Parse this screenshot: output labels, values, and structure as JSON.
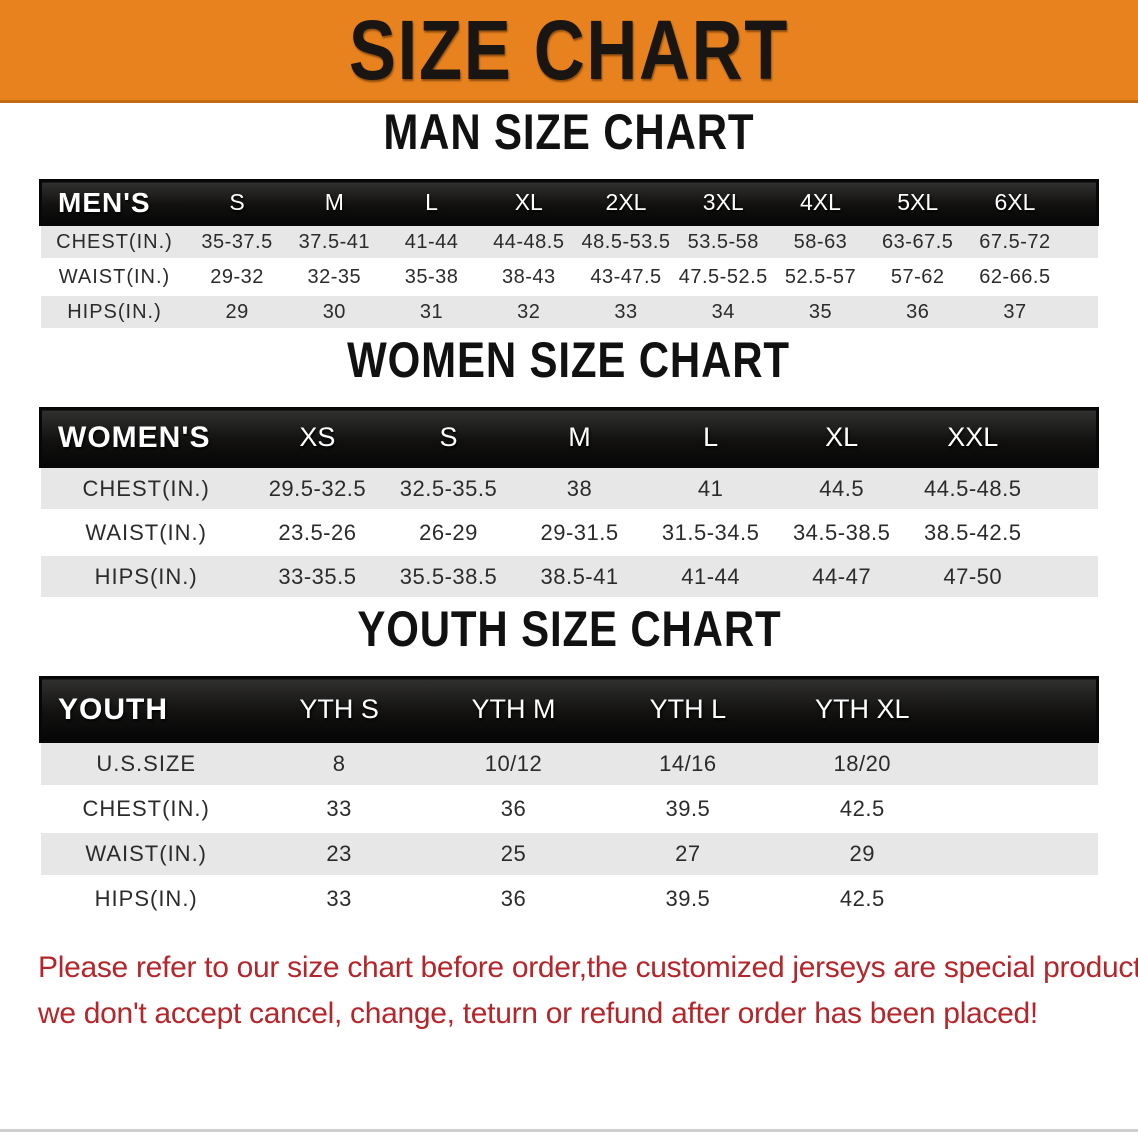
{
  "colors": {
    "banner-bg": "#E8821E",
    "banner-edge": "#C56A10",
    "band-text": "#FFFFFF",
    "stripe": "#E7E7E7",
    "heading-text": "#111111",
    "cell-text": "#2B2B2B",
    "disclaimer-red": "#B3262B"
  },
  "banner": {
    "title": "SIZE CHART"
  },
  "sections": {
    "men": {
      "heading": "MAN SIZE CHART",
      "header_label": "MEN'S",
      "columns": [
        "S",
        "M",
        "L",
        "XL",
        "2XL",
        "3XL",
        "4XL",
        "5XL",
        "6XL"
      ],
      "rows": [
        {
          "label": "CHEST(IN.)",
          "values": [
            "35-37.5",
            "37.5-41",
            "41-44",
            "44-48.5",
            "48.5-53.5",
            "53.5-58",
            "58-63",
            "63-67.5",
            "67.5-72"
          ]
        },
        {
          "label": "WAIST(IN.)",
          "values": [
            "29-32",
            "32-35",
            "35-38",
            "38-43",
            "43-47.5",
            "47.5-52.5",
            "52.5-57",
            "57-62",
            "62-66.5"
          ]
        },
        {
          "label": "HIPS(IN.)",
          "values": [
            "29",
            "30",
            "31",
            "32",
            "33",
            "34",
            "35",
            "36",
            "37"
          ]
        }
      ]
    },
    "women": {
      "heading": "WOMEN SIZE CHART",
      "header_label": "WOMEN'S",
      "columns": [
        "XS",
        "S",
        "M",
        "L",
        "XL",
        "XXL"
      ],
      "rows": [
        {
          "label": "CHEST(IN.)",
          "values": [
            "29.5-32.5",
            "32.5-35.5",
            "38",
            "41",
            "44.5",
            "44.5-48.5"
          ]
        },
        {
          "label": "WAIST(IN.)",
          "values": [
            "23.5-26",
            "26-29",
            "29-31.5",
            "31.5-34.5",
            "34.5-38.5",
            "38.5-42.5"
          ]
        },
        {
          "label": "HIPS(IN.)",
          "values": [
            "33-35.5",
            "35.5-38.5",
            "38.5-41",
            "41-44",
            "44-47",
            "47-50"
          ]
        }
      ]
    },
    "youth": {
      "heading": "YOUTH SIZE CHART",
      "header_label": "YOUTH",
      "columns": [
        "YTH S",
        "YTH M",
        "YTH L",
        "YTH XL"
      ],
      "rows": [
        {
          "label": "U.S.SIZE",
          "values": [
            "8",
            "10/12",
            "14/16",
            "18/20"
          ]
        },
        {
          "label": "CHEST(IN.)",
          "values": [
            "33",
            "36",
            "39.5",
            "42.5"
          ]
        },
        {
          "label": "WAIST(IN.)",
          "values": [
            "23",
            "25",
            "27",
            "29"
          ]
        },
        {
          "label": "HIPS(IN.)",
          "values": [
            "33",
            "36",
            "39.5",
            "42.5"
          ]
        }
      ]
    }
  },
  "disclaimer": {
    "line1": "Please refer to our size chart before order,the customized jerseys are special products,",
    "line2": "we don't accept cancel, change, teturn or refund after order has been placed!"
  }
}
